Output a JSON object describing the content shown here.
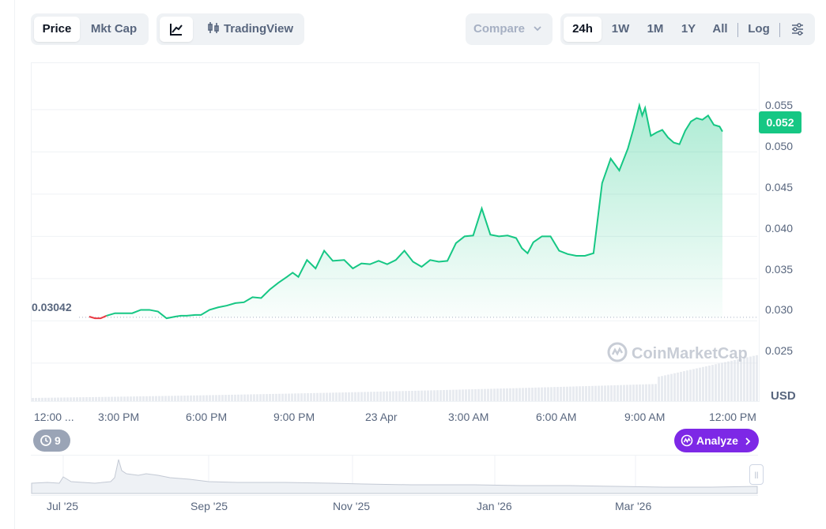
{
  "toolbar": {
    "price_label": "Price",
    "mktcap_label": "Mkt Cap",
    "tradingview_label": "TradingView",
    "compare_label": "Compare",
    "ranges": [
      "24h",
      "1W",
      "1M",
      "1Y",
      "All"
    ],
    "active_range": "24h",
    "log_label": "Log"
  },
  "chart_data": {
    "type": "area",
    "xlabel": "",
    "ylabel": "",
    "unit_label": "USD",
    "current_price": "0.052",
    "open_price_label": "0.03042",
    "open_price": 0.03042,
    "ylim": [
      0.0205,
      0.0605
    ],
    "y_ticks": [
      "0.055",
      "0.050",
      "0.045",
      "0.040",
      "0.035",
      "0.030",
      "0.025"
    ],
    "x_ticks": [
      "12:00 ...",
      "3:00 PM",
      "6:00 PM",
      "9:00 PM",
      "23 Apr",
      "3:00 AM",
      "6:00 AM",
      "9:00 AM",
      "12:00 PM"
    ],
    "x_hours": [
      0,
      3,
      6,
      9,
      12,
      15,
      18,
      21,
      24
    ],
    "grid": true,
    "colors": {
      "up": "#16c784",
      "down": "#ea3943",
      "volume": "#d9dde6"
    },
    "series": [
      {
        "hours": [
          1.9,
          2.1,
          2.3,
          2.5,
          2.8,
          3.1,
          3.4,
          3.7,
          4.0,
          4.3,
          4.6,
          4.9,
          5.1,
          5.3,
          5.6,
          5.8,
          6.1,
          6.4,
          6.7,
          7.0,
          7.3,
          7.6,
          7.9,
          8.2,
          8.5,
          8.8,
          9.0,
          9.2,
          9.5,
          9.8,
          10.1,
          10.4,
          10.8,
          11.1,
          11.4,
          11.7,
          12.0,
          12.3,
          12.6,
          12.9,
          13.2,
          13.5,
          13.8,
          14.1,
          14.4,
          14.7,
          15.0,
          15.3,
          15.6,
          15.9,
          16.2,
          16.5,
          16.8,
          17.0,
          17.2,
          17.4,
          17.7,
          18.0,
          18.3,
          18.6,
          18.9,
          19.2,
          19.5,
          19.8,
          20.1,
          20.4,
          20.7,
          20.9,
          21.1,
          21.2,
          21.3,
          21.5,
          21.7,
          21.9,
          22.1,
          22.3,
          22.5,
          22.7,
          22.9,
          23.1,
          23.3,
          23.5,
          23.7,
          23.9,
          24.0
        ],
        "values": [
          0.0305,
          0.0303,
          0.0303,
          0.0306,
          0.0309,
          0.0309,
          0.0309,
          0.0313,
          0.0313,
          0.0311,
          0.0303,
          0.0305,
          0.0306,
          0.0306,
          0.0307,
          0.0307,
          0.0313,
          0.0316,
          0.0318,
          0.0321,
          0.0322,
          0.0328,
          0.0327,
          0.0337,
          0.0345,
          0.0352,
          0.0357,
          0.0352,
          0.0372,
          0.0362,
          0.0383,
          0.0371,
          0.0372,
          0.0362,
          0.0368,
          0.0367,
          0.0371,
          0.0367,
          0.0372,
          0.0383,
          0.037,
          0.0364,
          0.0372,
          0.037,
          0.0371,
          0.0392,
          0.04,
          0.0401,
          0.0433,
          0.0402,
          0.04,
          0.0401,
          0.0398,
          0.0386,
          0.038,
          0.0393,
          0.04,
          0.04,
          0.0383,
          0.0379,
          0.0377,
          0.0377,
          0.038,
          0.0463,
          0.0492,
          0.0478,
          0.0504,
          0.0528,
          0.0555,
          0.0543,
          0.0552,
          0.0519,
          0.0523,
          0.0526,
          0.0517,
          0.0511,
          0.0509,
          0.0525,
          0.0536,
          0.054,
          0.0538,
          0.0543,
          0.0532,
          0.053,
          0.0524
        ]
      }
    ]
  },
  "navigator": {
    "x_ticks": [
      "Jul '25",
      "Sep '25",
      "Nov '25",
      "Jan '26",
      "Mar '26"
    ]
  },
  "watermark": "CoinMarketCap",
  "alerts_count": "9",
  "analyze_label": "Analyze"
}
